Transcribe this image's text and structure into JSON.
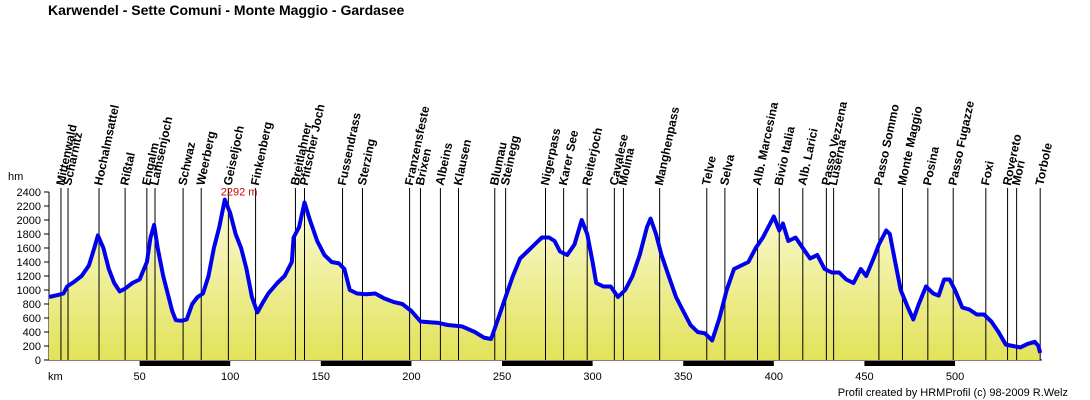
{
  "chart_data": {
    "type": "line",
    "title": "Karwendel - Sette Comuni - Monte Maggio - Gardasee",
    "x_label": "km",
    "y_label": "hm",
    "annotation": "2292 m",
    "credit": "Profil created by HRMProfil (c) 98-2009 R.Welz",
    "xlim": [
      0,
      548
    ],
    "ylim": [
      0,
      2400
    ],
    "xticks": [
      50,
      100,
      150,
      200,
      250,
      300,
      350,
      400,
      450,
      500
    ],
    "yticks": [
      0,
      200,
      400,
      600,
      800,
      1000,
      1200,
      1400,
      1600,
      1800,
      2000,
      2200,
      2400
    ],
    "waypoints": [
      {
        "name": "Mittenwald",
        "km": 6.6
      },
      {
        "name": "Scharnitz",
        "km": 10.5
      },
      {
        "name": "Hochalmsattel",
        "km": 27.6
      },
      {
        "name": "Rißtal",
        "km": 42
      },
      {
        "name": "Engalm",
        "km": 54
      },
      {
        "name": "Lamsenjoch",
        "km": 58.5
      },
      {
        "name": "Schwaz",
        "km": 74
      },
      {
        "name": "Weerberg",
        "km": 84
      },
      {
        "name": "Geiseljoch",
        "km": 99
      },
      {
        "name": "Finkenberg",
        "km": 114
      },
      {
        "name": "Breitlahner",
        "km": 136
      },
      {
        "name": "Pfitscher Joch",
        "km": 141
      },
      {
        "name": "Fussendrass",
        "km": 162
      },
      {
        "name": "Sterzing",
        "km": 173
      },
      {
        "name": "Franzensfeste",
        "km": 199
      },
      {
        "name": "Brixen",
        "km": 205
      },
      {
        "name": "Albeins",
        "km": 216
      },
      {
        "name": "Klausen",
        "km": 226
      },
      {
        "name": "Blumau",
        "km": 246
      },
      {
        "name": "Steinegg",
        "km": 252
      },
      {
        "name": "Nigerpass",
        "km": 274
      },
      {
        "name": "Karer See",
        "km": 284
      },
      {
        "name": "Reiterjoch",
        "km": 297
      },
      {
        "name": "Cavalese",
        "km": 312
      },
      {
        "name": "Molina",
        "km": 317
      },
      {
        "name": "Manghenpass",
        "km": 337
      },
      {
        "name": "Telve",
        "km": 363
      },
      {
        "name": "Selva",
        "km": 373
      },
      {
        "name": "Alb. Marcesina",
        "km": 391
      },
      {
        "name": "Bivio Italia",
        "km": 403
      },
      {
        "name": "Alb. Larici",
        "km": 416
      },
      {
        "name": "Passo Vezzena",
        "km": 429
      },
      {
        "name": "Luserna",
        "km": 433
      },
      {
        "name": "Passo Sommo",
        "km": 458
      },
      {
        "name": "Monte Maggio",
        "km": 471
      },
      {
        "name": "Posina",
        "km": 485
      },
      {
        "name": "Passo  Fugazze",
        "km": 499
      },
      {
        "name": "Foxi",
        "km": 517
      },
      {
        "name": "Rovereto",
        "km": 529
      },
      {
        "name": "Mori",
        "km": 534
      },
      {
        "name": "Torbole",
        "km": 547
      }
    ],
    "x": [
      0,
      5,
      8,
      10,
      14,
      18,
      22,
      25,
      27,
      30,
      33,
      36,
      39,
      42,
      46,
      50,
      54,
      56,
      58,
      60,
      63,
      66,
      68,
      70,
      73,
      76,
      79,
      82,
      85,
      88,
      91,
      94,
      97,
      100,
      103,
      106,
      109,
      112,
      115,
      118,
      121,
      126,
      130,
      134,
      135,
      138,
      141,
      144,
      148,
      152,
      156,
      160,
      163,
      166,
      170,
      175,
      180,
      185,
      190,
      195,
      200,
      205,
      210,
      215,
      220,
      228,
      235,
      240,
      244,
      248,
      252,
      256,
      260,
      264,
      268,
      272,
      276,
      279,
      282,
      286,
      290,
      294,
      297,
      300,
      302,
      306,
      310,
      314,
      318,
      322,
      326,
      330,
      332,
      335,
      338,
      342,
      346,
      350,
      354,
      358,
      362,
      366,
      370,
      374,
      378,
      382,
      386,
      390,
      394,
      398,
      400,
      403,
      405,
      408,
      412,
      416,
      420,
      424,
      428,
      432,
      436,
      440,
      444,
      448,
      451,
      455,
      458,
      462,
      464,
      467,
      470,
      474,
      477,
      480,
      484,
      488,
      491,
      494,
      497,
      500,
      504,
      508,
      512,
      516,
      520,
      524,
      528,
      532,
      536,
      540,
      544,
      546,
      547
    ],
    "series": [
      {
        "color": "#0000ee",
        "fill": "#e8e872",
        "values": [
          900,
          930,
          950,
          1050,
          1120,
          1200,
          1350,
          1600,
          1780,
          1600,
          1300,
          1100,
          980,
          1020,
          1100,
          1150,
          1400,
          1750,
          1930,
          1600,
          1200,
          900,
          700,
          570,
          560,
          580,
          800,
          900,
          950,
          1200,
          1600,
          1900,
          2292,
          2100,
          1800,
          1600,
          1300,
          900,
          680,
          820,
          950,
          1100,
          1200,
          1400,
          1750,
          1900,
          2250,
          2000,
          1700,
          1500,
          1400,
          1380,
          1300,
          1000,
          950,
          940,
          950,
          880,
          830,
          800,
          700,
          550,
          540,
          530,
          500,
          480,
          400,
          320,
          300,
          600,
          900,
          1200,
          1450,
          1550,
          1650,
          1750,
          1750,
          1700,
          1550,
          1500,
          1650,
          2000,
          1800,
          1400,
          1100,
          1050,
          1050,
          900,
          1000,
          1200,
          1500,
          1900,
          2020,
          1800,
          1500,
          1200,
          900,
          700,
          500,
          400,
          380,
          280,
          600,
          1000,
          1300,
          1350,
          1400,
          1600,
          1750,
          1950,
          2050,
          1850,
          1950,
          1700,
          1750,
          1600,
          1450,
          1500,
          1300,
          1250,
          1250,
          1150,
          1100,
          1300,
          1200,
          1450,
          1650,
          1850,
          1800,
          1400,
          1000,
          750,
          580,
          800,
          1050,
          950,
          920,
          1150,
          1150,
          1000,
          750,
          720,
          650,
          650,
          550,
          400,
          220,
          200,
          180,
          230,
          260,
          200,
          100
        ]
      }
    ]
  }
}
